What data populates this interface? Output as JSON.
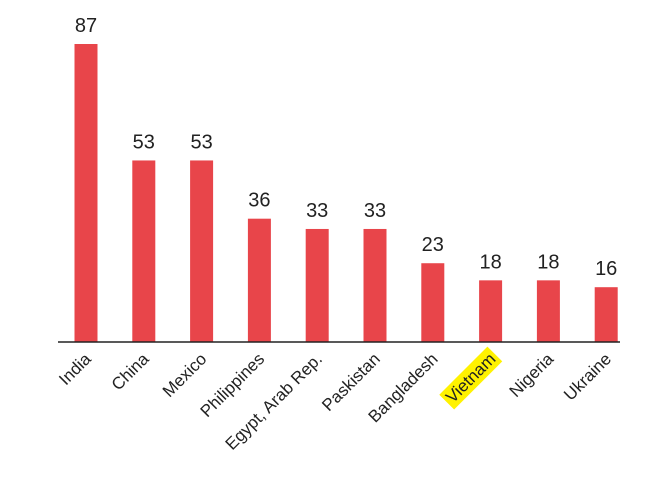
{
  "chart_data": {
    "type": "bar",
    "categories": [
      "India",
      "China",
      "Mexico",
      "Philippines",
      "Egypt, Arab Rep.",
      "Paskistan",
      "Bangladesh",
      "Vietnam",
      "Nigeria",
      "Ukraine"
    ],
    "values": [
      87,
      53,
      53,
      36,
      33,
      33,
      23,
      18,
      18,
      16
    ],
    "title": "",
    "xlabel": "",
    "ylabel": "",
    "ylim": [
      0,
      87
    ],
    "bar_color": "#e8454a",
    "highlight_category": "Vietnam",
    "highlight_color": "#fff200",
    "grid": false,
    "legend": "none"
  }
}
